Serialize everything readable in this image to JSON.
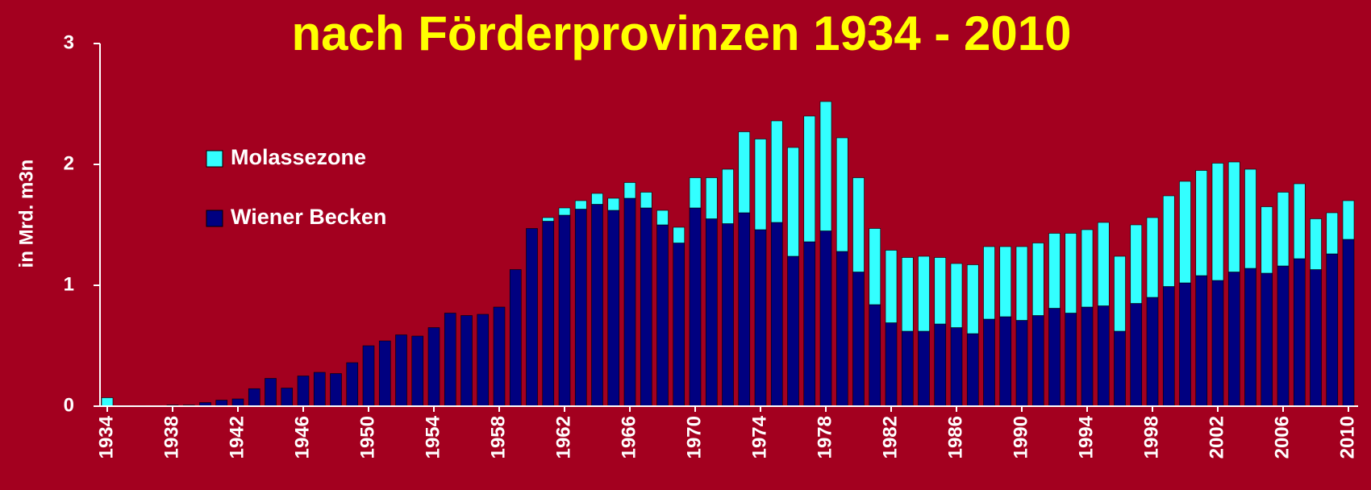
{
  "chart_data": {
    "type": "stacked_bar",
    "title": "nach Förderprovinzen 1934 - 2010",
    "y_label": "in Mrd. m3n",
    "categories": [
      "1934",
      null,
      null,
      null,
      "1938",
      null,
      null,
      null,
      "1942",
      null,
      null,
      null,
      "1946",
      null,
      null,
      null,
      "1950",
      null,
      null,
      null,
      "1954",
      null,
      null,
      null,
      "1958",
      null,
      null,
      null,
      "1962",
      null,
      null,
      null,
      "1966",
      null,
      null,
      null,
      "1970",
      null,
      null,
      null,
      "1974",
      null,
      null,
      null,
      "1978",
      null,
      null,
      null,
      "1982",
      null,
      null,
      null,
      "1986",
      null,
      null,
      null,
      "1990",
      null,
      null,
      null,
      "1994",
      null,
      null,
      null,
      "1998",
      null,
      null,
      null,
      "2002",
      null,
      null,
      null,
      "2006",
      null,
      null,
      null,
      "2010"
    ],
    "series": [
      {
        "name": "Molassezone",
        "color": "#33ffff",
        "values": [
          0.07,
          0,
          0,
          0,
          0,
          0,
          0,
          0,
          0,
          0,
          0,
          0,
          0,
          0,
          0,
          0,
          0,
          0,
          0,
          0,
          0,
          0,
          0,
          0,
          0,
          0,
          0,
          0.03,
          0.06,
          0.07,
          0.09,
          0.1,
          0.13,
          0.13,
          0.12,
          0.13,
          0.25,
          0.34,
          0.45,
          0.67,
          0.75,
          0.84,
          0.9,
          1.04,
          1.07,
          0.94,
          0.78,
          0.63,
          0.6,
          0.61,
          0.62,
          0.55,
          0.53,
          0.57,
          0.6,
          0.58,
          0.61,
          0.6,
          0.62,
          0.66,
          0.64,
          0.69,
          0.62,
          0.65,
          0.66,
          0.75,
          0.84,
          0.87,
          0.97,
          0.91,
          0.82,
          0.55,
          0.61,
          0.62,
          0.42,
          0.34,
          0.32
        ]
      },
      {
        "name": "Wiener Becken",
        "color": "#000080",
        "values": [
          0,
          0.005,
          0.005,
          0.005,
          0.01,
          0.01,
          0.03,
          0.05,
          0.06,
          0.145,
          0.23,
          0.15,
          0.25,
          0.28,
          0.27,
          0.36,
          0.5,
          0.54,
          0.59,
          0.58,
          0.65,
          0.77,
          0.75,
          0.76,
          0.82,
          1.13,
          1.47,
          1.53,
          1.58,
          1.63,
          1.67,
          1.62,
          1.72,
          1.64,
          1.5,
          1.35,
          1.64,
          1.55,
          1.51,
          1.6,
          1.46,
          1.52,
          1.24,
          1.36,
          1.45,
          1.28,
          1.11,
          0.84,
          0.69,
          0.62,
          0.62,
          0.68,
          0.65,
          0.6,
          0.72,
          0.74,
          0.71,
          0.75,
          0.81,
          0.77,
          0.82,
          0.83,
          0.62,
          0.85,
          0.9,
          0.99,
          1.02,
          1.08,
          1.04,
          1.11,
          1.14,
          1.1,
          1.16,
          1.22,
          1.13,
          1.26,
          1.38
        ]
      }
    ],
    "ylim": [
      0,
      3
    ],
    "yticks": [
      0,
      1,
      2,
      3
    ],
    "grid": false
  }
}
